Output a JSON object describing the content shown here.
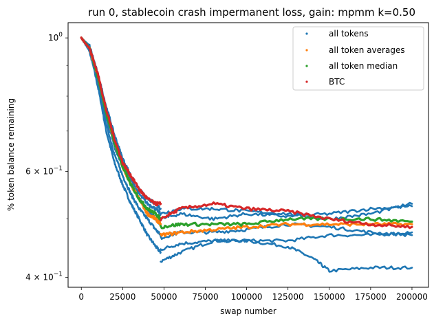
{
  "chart_data": {
    "type": "scatter",
    "title": "run 0, stablecoin crash impermanent loss, gain: mpmm k=0.50",
    "xlabel": "swap number",
    "ylabel": "% token balance remaining",
    "y_scale": "log",
    "xlim": [
      -8000,
      210000
    ],
    "ylim": [
      0.385,
      1.06
    ],
    "x_ticks": [
      {
        "value": 0,
        "label": "0"
      },
      {
        "value": 25000,
        "label": "25000"
      },
      {
        "value": 50000,
        "label": "50000"
      },
      {
        "value": 75000,
        "label": "75000"
      },
      {
        "value": 100000,
        "label": "100000"
      },
      {
        "value": 125000,
        "label": "125000"
      },
      {
        "value": 150000,
        "label": "150000"
      },
      {
        "value": 175000,
        "label": "175000"
      },
      {
        "value": 200000,
        "label": "200000"
      }
    ],
    "y_major_ticks": [
      {
        "value": 0.4,
        "base": "4",
        "exp": "−1"
      },
      {
        "value": 0.6,
        "base": "6",
        "exp": "−1"
      },
      {
        "value": 1.0,
        "base": "",
        "exp": "0"
      }
    ],
    "y_minor_ticks": [
      0.5,
      0.7,
      0.8,
      0.9
    ],
    "grid": false,
    "legend_position": "top-right",
    "colors": {
      "all_tokens": "#1f77b4",
      "averages": "#ff7f0e",
      "median": "#2ca02c",
      "btc": "#d62728"
    },
    "series": [
      {
        "name": "all tokens",
        "key": "all_tokens",
        "lines": [
          {
            "x": [
              0,
              5000,
              10000,
              15000,
              20000,
              25000,
              30000,
              35000,
              40000,
              45000,
              48000
            ],
            "y": [
              1.0,
              0.95,
              0.83,
              0.7,
              0.62,
              0.57,
              0.53,
              0.5,
              0.47,
              0.45,
              0.44
            ]
          },
          {
            "x": [
              48000,
              60000,
              80000,
              100000,
              125000,
              140000,
              150000,
              175000,
              200000
            ],
            "y": [
              0.425,
              0.44,
              0.46,
              0.46,
              0.45,
              0.43,
              0.41,
              0.415,
              0.415
            ]
          },
          {
            "x": [
              0,
              5000,
              10000,
              15000,
              20000,
              25000,
              30000,
              35000,
              40000,
              45000,
              48000
            ],
            "y": [
              1.0,
              0.95,
              0.84,
              0.72,
              0.64,
              0.59,
              0.55,
              0.52,
              0.5,
              0.48,
              0.47
            ]
          },
          {
            "x": [
              48000,
              60000,
              80000,
              100000,
              125000,
              150000,
              175000,
              200000
            ],
            "y": [
              0.445,
              0.455,
              0.46,
              0.46,
              0.46,
              0.47,
              0.47,
              0.475
            ]
          },
          {
            "x": [
              0,
              5000,
              10000,
              15000,
              20000,
              25000,
              30000,
              35000,
              40000,
              45000,
              48000
            ],
            "y": [
              1.0,
              0.96,
              0.85,
              0.74,
              0.66,
              0.61,
              0.57,
              0.54,
              0.52,
              0.5,
              0.49
            ]
          },
          {
            "x": [
              48000,
              60000,
              80000,
              100000,
              125000,
              150000,
              175000,
              200000
            ],
            "y": [
              0.465,
              0.475,
              0.475,
              0.48,
              0.49,
              0.485,
              0.475,
              0.47
            ]
          },
          {
            "x": [
              0,
              5000,
              10000,
              15000,
              20000,
              25000,
              30000,
              35000,
              40000,
              45000,
              48000
            ],
            "y": [
              1.0,
              0.96,
              0.86,
              0.76,
              0.67,
              0.62,
              0.58,
              0.55,
              0.53,
              0.52,
              0.51
            ]
          },
          {
            "x": [
              48000,
              60000,
              80000,
              100000,
              125000,
              150000,
              175000,
              200000
            ],
            "y": [
              0.5,
              0.51,
              0.5,
              0.51,
              0.505,
              0.51,
              0.52,
              0.525
            ]
          },
          {
            "x": [
              0,
              5000,
              10000,
              15000,
              20000,
              25000,
              30000,
              35000,
              40000,
              45000,
              48000
            ],
            "y": [
              1.0,
              0.97,
              0.87,
              0.77,
              0.69,
              0.63,
              0.59,
              0.56,
              0.54,
              0.53,
              0.52
            ]
          },
          {
            "x": [
              48000,
              60000,
              80000,
              100000,
              125000,
              150000,
              175000,
              200000
            ],
            "y": [
              0.51,
              0.52,
              0.52,
              0.515,
              0.51,
              0.5,
              0.51,
              0.53
            ]
          }
        ]
      },
      {
        "name": "all token averages",
        "key": "averages",
        "lines": [
          {
            "x": [
              0,
              5000,
              10000,
              15000,
              20000,
              25000,
              30000,
              35000,
              40000,
              45000,
              48000
            ],
            "y": [
              1.0,
              0.96,
              0.86,
              0.75,
              0.67,
              0.61,
              0.57,
              0.54,
              0.51,
              0.5,
              0.49
            ]
          },
          {
            "x": [
              48000,
              60000,
              80000,
              100000,
              125000,
              150000,
              175000,
              200000
            ],
            "y": [
              0.47,
              0.475,
              0.48,
              0.485,
              0.49,
              0.49,
              0.49,
              0.49
            ]
          }
        ]
      },
      {
        "name": "all token median",
        "key": "median",
        "lines": [
          {
            "x": [
              0,
              5000,
              10000,
              15000,
              20000,
              25000,
              30000,
              35000,
              40000,
              45000,
              48000
            ],
            "y": [
              1.0,
              0.96,
              0.86,
              0.75,
              0.67,
              0.61,
              0.57,
              0.54,
              0.52,
              0.51,
              0.5
            ]
          },
          {
            "x": [
              48000,
              60000,
              80000,
              100000,
              125000,
              150000,
              175000,
              200000
            ],
            "y": [
              0.485,
              0.49,
              0.49,
              0.49,
              0.5,
              0.5,
              0.5,
              0.495
            ]
          }
        ]
      },
      {
        "name": "BTC",
        "key": "btc",
        "lines": [
          {
            "x": [
              0,
              5000,
              10000,
              15000,
              20000,
              25000,
              30000,
              35000,
              40000,
              45000,
              48000
            ],
            "y": [
              1.0,
              0.96,
              0.87,
              0.76,
              0.68,
              0.62,
              0.59,
              0.56,
              0.54,
              0.53,
              0.53
            ]
          },
          {
            "x": [
              48000,
              60000,
              80000,
              100000,
              125000,
              150000,
              175000,
              200000
            ],
            "y": [
              0.5,
              0.52,
              0.53,
              0.52,
              0.515,
              0.5,
              0.49,
              0.485
            ]
          }
        ]
      }
    ]
  }
}
